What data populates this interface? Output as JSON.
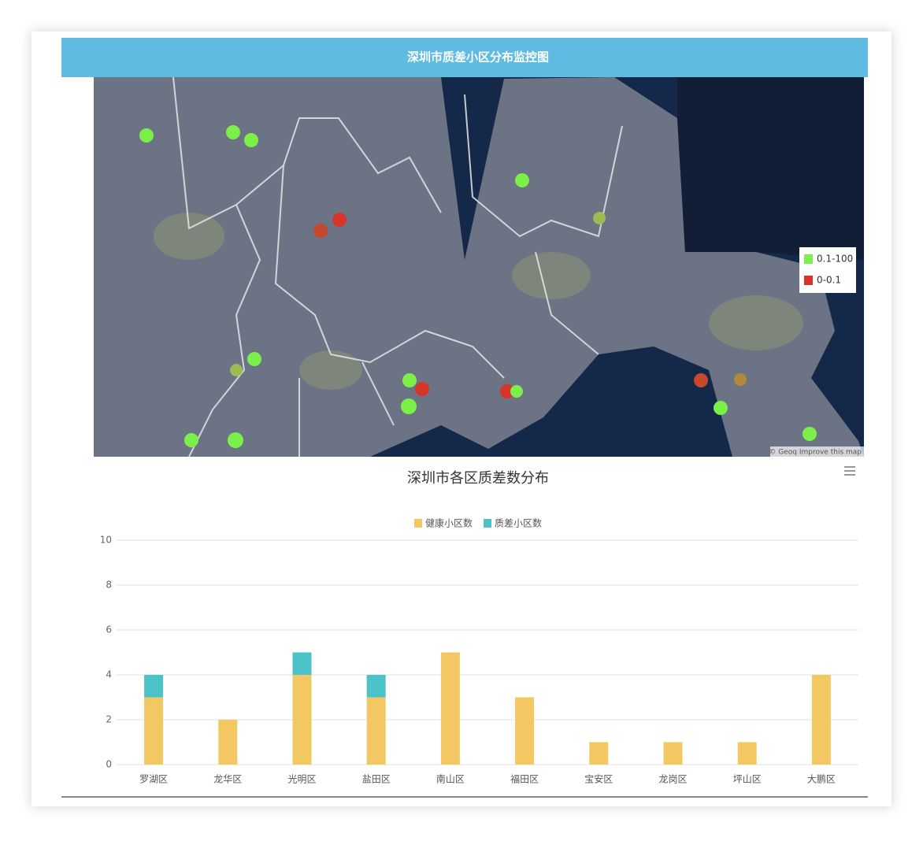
{
  "header": {
    "title": "深圳市质差小区分布监控图"
  },
  "map": {
    "legend": [
      {
        "label": "0.1-100",
        "color": "#7cf04a"
      },
      {
        "label": "0-0.1",
        "color": "#d8342a"
      }
    ],
    "attribution": "© Geoq Improve this map"
  },
  "chart_data": {
    "type": "bar",
    "stacked": true,
    "title": "深圳市各区质差数分布",
    "categories": [
      "罗湖区",
      "龙华区",
      "光明区",
      "盐田区",
      "南山区",
      "福田区",
      "宝安区",
      "龙岗区",
      "坪山区",
      "大鹏区"
    ],
    "series": [
      {
        "name": "健康小区数",
        "color": "#f3c862",
        "values": [
          3,
          2,
          4,
          3,
          5,
          3,
          1,
          1,
          1,
          4
        ]
      },
      {
        "name": "质差小区数",
        "color": "#4cc3c9",
        "values": [
          1,
          0,
          1,
          1,
          0,
          0,
          0,
          0,
          0,
          0
        ]
      }
    ],
    "ylim": [
      0,
      10
    ],
    "yticks": [
      0,
      2,
      4,
      6,
      8,
      10
    ],
    "grid": true,
    "legend_position": "top"
  }
}
